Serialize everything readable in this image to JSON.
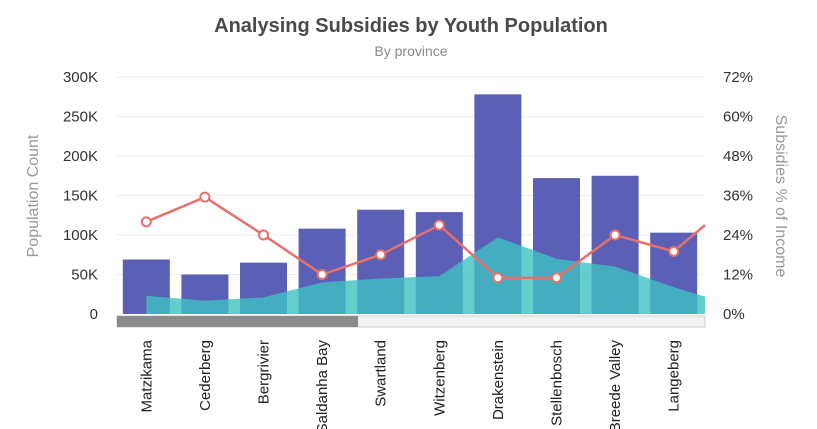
{
  "chart_data": {
    "type": "bar",
    "title": "Analysing Subsidies by Youth Population",
    "subtitle": "By province",
    "categories": [
      "Matzikama",
      "Cederberg",
      "Bergrivier",
      "Saldanha Bay",
      "Swartland",
      "Witzenberg",
      "Drakenstein",
      "Stellenbosch",
      "Breede Valley",
      "Langeberg"
    ],
    "y_left": {
      "label": "Population Count",
      "ticks": [
        "0",
        "50K",
        "100K",
        "150K",
        "200K",
        "250K",
        "300K"
      ],
      "min": 0,
      "max": 300000
    },
    "y_right": {
      "label": "Subsidies % of Income",
      "ticks": [
        "0%",
        "12%",
        "24%",
        "36%",
        "48%",
        "60%",
        "72%"
      ],
      "min": 0,
      "max": 72
    },
    "series": [
      {
        "type": "bar",
        "axis": "left",
        "color": "#5b5fb5",
        "values": [
          69000,
          50000,
          65000,
          108000,
          132000,
          129000,
          278000,
          172000,
          175000,
          103000
        ]
      },
      {
        "type": "area",
        "axis": "left",
        "color": "#3fc1c2",
        "values": [
          23000,
          17000,
          21000,
          40000,
          45000,
          48000,
          97000,
          70000,
          60000,
          34000
        ],
        "trailing_value": 22000
      },
      {
        "type": "line",
        "axis": "right",
        "color": "#e8706b",
        "values": [
          28,
          35.5,
          24,
          12,
          18,
          27,
          11,
          11,
          24,
          19
        ],
        "trailing_value": 27
      }
    ],
    "grid": true,
    "scrollbar": {
      "visible_fraction": 0.41
    }
  }
}
